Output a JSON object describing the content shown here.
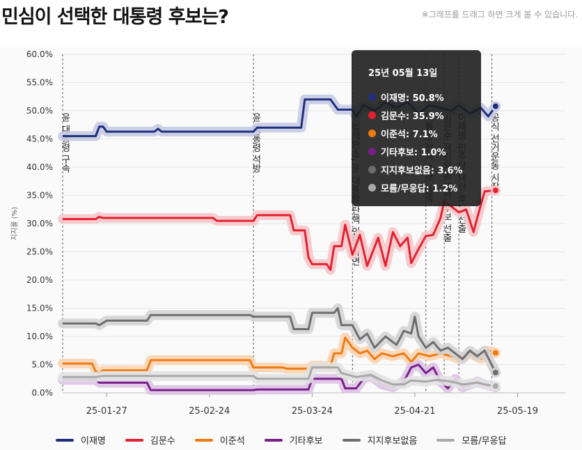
{
  "page": {
    "title": "민심이 선택한 대통령 후보는?",
    "hint": "※그래프를 드래그 하면 크게 볼 수 있습니다."
  },
  "chart_data": {
    "type": "line",
    "ylabel": "지지율 (%)",
    "ylim": [
      0,
      60
    ],
    "yticks": [
      "0.0%",
      "5.0%",
      "10.0%",
      "15.0%",
      "20.0%",
      "25.0%",
      "30.0%",
      "35.0%",
      "40.0%",
      "45.0%",
      "50.0%",
      "55.0%",
      "60.0%"
    ],
    "xlim": [
      "2025-01-15",
      "2025-06-01"
    ],
    "xticks": [
      {
        "date": "2025-01-27",
        "label": "25-01-27"
      },
      {
        "date": "2025-02-24",
        "label": "25-02-24"
      },
      {
        "date": "2025-03-24",
        "label": "25-03-24"
      },
      {
        "date": "2025-04-21",
        "label": "25-04-21"
      },
      {
        "date": "2025-05-19",
        "label": "25-05-19"
      }
    ],
    "grid": true,
    "legend_position": "bottom",
    "events": [
      {
        "date": "2025-01-15",
        "label": "윤 대통령 구속"
      },
      {
        "date": "2025-03-08",
        "label": "윤 대통령 석방"
      },
      {
        "date": "2025-04-04",
        "label": "헌법재판소, 윤 대통령 탄핵 인용·파면"
      },
      {
        "date": "2025-04-24",
        "label": "대통령 선거 후보 등록"
      },
      {
        "date": "2025-04-29",
        "label": "김문수 국민의힘 대선 후보 선출"
      },
      {
        "date": "2025-05-03",
        "label": "이재명 민주당 대선 후보 선출"
      },
      {
        "date": "2025-05-12",
        "label": "공식 선거운동 시작"
      }
    ],
    "series": [
      {
        "name": "이재명",
        "color": "#1f2f7a",
        "band": "#c7cbe4",
        "points": [
          [
            "2025-01-15",
            45.5
          ],
          [
            "2025-01-24",
            45.5
          ],
          [
            "2025-01-25",
            47.2
          ],
          [
            "2025-01-26",
            47.2
          ],
          [
            "2025-01-27",
            46.3
          ],
          [
            "2025-02-09",
            46.3
          ],
          [
            "2025-02-10",
            46.8
          ],
          [
            "2025-02-11",
            46.3
          ],
          [
            "2025-03-08",
            46.3
          ],
          [
            "2025-03-09",
            47.0
          ],
          [
            "2025-03-21",
            47.0
          ],
          [
            "2025-03-22",
            52.0
          ],
          [
            "2025-03-29",
            52.0
          ],
          [
            "2025-03-31",
            50.2
          ],
          [
            "2025-04-04",
            50.2
          ],
          [
            "2025-04-05",
            49.0
          ],
          [
            "2025-04-07",
            51.0
          ],
          [
            "2025-04-10",
            50.0
          ],
          [
            "2025-04-13",
            51.5
          ],
          [
            "2025-04-16",
            50.5
          ],
          [
            "2025-04-19",
            51.5
          ],
          [
            "2025-04-22",
            49.5
          ],
          [
            "2025-04-25",
            51.0
          ],
          [
            "2025-04-28",
            50.5
          ],
          [
            "2025-05-01",
            50.0
          ],
          [
            "2025-05-03",
            51.0
          ],
          [
            "2025-05-06",
            49.5
          ],
          [
            "2025-05-09",
            50.5
          ],
          [
            "2025-05-11",
            49.0
          ],
          [
            "2025-05-13",
            50.8
          ]
        ]
      },
      {
        "name": "김문수",
        "color": "#e3212f",
        "band": "#f6c6ca",
        "points": [
          [
            "2025-01-15",
            30.8
          ],
          [
            "2025-01-24",
            30.8
          ],
          [
            "2025-01-25",
            31.2
          ],
          [
            "2025-01-26",
            31.0
          ],
          [
            "2025-02-25",
            31.0
          ],
          [
            "2025-02-26",
            30.5
          ],
          [
            "2025-03-08",
            30.5
          ],
          [
            "2025-03-09",
            31.5
          ],
          [
            "2025-03-18",
            31.5
          ],
          [
            "2025-03-19",
            28.8
          ],
          [
            "2025-03-22",
            28.8
          ],
          [
            "2025-03-23",
            24.0
          ],
          [
            "2025-03-24",
            22.8
          ],
          [
            "2025-03-28",
            22.8
          ],
          [
            "2025-03-29",
            21.8
          ],
          [
            "2025-03-30",
            26.0
          ],
          [
            "2025-04-01",
            26.0
          ],
          [
            "2025-04-02",
            29.8
          ],
          [
            "2025-04-04",
            24.5
          ],
          [
            "2025-04-06",
            28.0
          ],
          [
            "2025-04-08",
            22.5
          ],
          [
            "2025-04-11",
            27.5
          ],
          [
            "2025-04-13",
            22.5
          ],
          [
            "2025-04-15",
            28.5
          ],
          [
            "2025-04-17",
            26.0
          ],
          [
            "2025-04-19",
            27.5
          ],
          [
            "2025-04-20",
            23.0
          ],
          [
            "2025-04-22",
            25.5
          ],
          [
            "2025-04-24",
            27.8
          ],
          [
            "2025-04-26",
            28.0
          ],
          [
            "2025-04-28",
            31.0
          ],
          [
            "2025-04-29",
            34.0
          ],
          [
            "2025-05-01",
            33.0
          ],
          [
            "2025-05-03",
            32.0
          ],
          [
            "2025-05-05",
            32.5
          ],
          [
            "2025-05-07",
            28.5
          ],
          [
            "2025-05-08",
            31.0
          ],
          [
            "2025-05-10",
            35.7
          ],
          [
            "2025-05-13",
            35.9
          ]
        ]
      },
      {
        "name": "이준석",
        "color": "#f07a12",
        "band": "#fbd4b3",
        "points": [
          [
            "2025-01-15",
            5.2
          ],
          [
            "2025-01-23",
            5.2
          ],
          [
            "2025-01-24",
            3.8
          ],
          [
            "2025-01-25",
            3.5
          ],
          [
            "2025-01-26",
            4.0
          ],
          [
            "2025-02-07",
            4.0
          ],
          [
            "2025-02-08",
            5.8
          ],
          [
            "2025-03-07",
            5.8
          ],
          [
            "2025-03-08",
            4.5
          ],
          [
            "2025-03-16",
            4.5
          ],
          [
            "2025-03-17",
            4.3
          ],
          [
            "2025-03-23",
            4.3
          ],
          [
            "2025-03-24",
            4.8
          ],
          [
            "2025-03-29",
            4.8
          ],
          [
            "2025-03-30",
            7.0
          ],
          [
            "2025-04-01",
            7.0
          ],
          [
            "2025-04-02",
            9.8
          ],
          [
            "2025-04-04",
            8.0
          ],
          [
            "2025-04-06",
            7.0
          ],
          [
            "2025-04-08",
            7.5
          ],
          [
            "2025-04-10",
            6.0
          ],
          [
            "2025-04-12",
            7.0
          ],
          [
            "2025-04-15",
            6.5
          ],
          [
            "2025-04-18",
            7.0
          ],
          [
            "2025-04-20",
            5.5
          ],
          [
            "2025-04-22",
            7.0
          ],
          [
            "2025-04-25",
            6.5
          ],
          [
            "2025-04-28",
            7.0
          ],
          [
            "2025-05-01",
            6.5
          ],
          [
            "2025-05-03",
            6.0
          ],
          [
            "2025-05-06",
            7.0
          ],
          [
            "2025-05-09",
            6.0
          ],
          [
            "2025-05-11",
            7.5
          ],
          [
            "2025-05-13",
            7.1
          ]
        ]
      },
      {
        "name": "기타후보",
        "color": "#7a1f8a",
        "band": "#dcc3e3",
        "points": [
          [
            "2025-01-15",
            2.3
          ],
          [
            "2025-01-24",
            2.3
          ],
          [
            "2025-01-25",
            1.8
          ],
          [
            "2025-02-07",
            1.8
          ],
          [
            "2025-02-08",
            0.5
          ],
          [
            "2025-03-08",
            0.5
          ],
          [
            "2025-03-09",
            0.6
          ],
          [
            "2025-03-23",
            0.6
          ],
          [
            "2025-03-24",
            2.5
          ],
          [
            "2025-04-01",
            2.5
          ],
          [
            "2025-04-02",
            0.8
          ],
          [
            "2025-04-05",
            0.8
          ],
          [
            "2025-04-07",
            2.5
          ],
          [
            "2025-04-09",
            3.0
          ],
          [
            "2025-04-12",
            1.5
          ],
          [
            "2025-04-15",
            1.0
          ],
          [
            "2025-04-18",
            2.0
          ],
          [
            "2025-04-20",
            4.5
          ],
          [
            "2025-04-22",
            5.0
          ],
          [
            "2025-04-24",
            3.5
          ],
          [
            "2025-04-26",
            4.5
          ],
          [
            "2025-04-28",
            2.0
          ],
          [
            "2025-04-30",
            0.8
          ],
          [
            "2025-05-02",
            2.5
          ],
          [
            "2025-05-04",
            1.0
          ],
          [
            "2025-05-06",
            1.5
          ],
          [
            "2025-05-08",
            2.0
          ],
          [
            "2025-05-10",
            1.5
          ],
          [
            "2025-05-13",
            1.0
          ]
        ]
      },
      {
        "name": "지지후보없음",
        "color": "#6e6e6e",
        "band": "#d4d4d4",
        "points": [
          [
            "2025-01-15",
            12.3
          ],
          [
            "2025-01-24",
            12.3
          ],
          [
            "2025-01-25",
            12.0
          ],
          [
            "2025-01-27",
            12.8
          ],
          [
            "2025-02-07",
            12.8
          ],
          [
            "2025-02-08",
            13.8
          ],
          [
            "2025-03-07",
            13.8
          ],
          [
            "2025-03-08",
            13.5
          ],
          [
            "2025-03-18",
            13.5
          ],
          [
            "2025-03-19",
            11.3
          ],
          [
            "2025-03-23",
            11.3
          ],
          [
            "2025-03-24",
            14.2
          ],
          [
            "2025-03-30",
            14.2
          ],
          [
            "2025-03-31",
            15.0
          ],
          [
            "2025-04-01",
            12.0
          ],
          [
            "2025-04-04",
            12.0
          ],
          [
            "2025-04-06",
            9.5
          ],
          [
            "2025-04-08",
            10.5
          ],
          [
            "2025-04-10",
            8.0
          ],
          [
            "2025-04-13",
            10.0
          ],
          [
            "2025-04-16",
            8.5
          ],
          [
            "2025-04-18",
            11.0
          ],
          [
            "2025-04-20",
            10.5
          ],
          [
            "2025-04-21",
            13.5
          ],
          [
            "2025-04-22",
            10.0
          ],
          [
            "2025-04-24",
            8.0
          ],
          [
            "2025-04-26",
            9.0
          ],
          [
            "2025-04-28",
            7.5
          ],
          [
            "2025-04-30",
            8.0
          ],
          [
            "2025-05-02",
            7.0
          ],
          [
            "2025-05-04",
            6.0
          ],
          [
            "2025-05-06",
            7.5
          ],
          [
            "2025-05-08",
            6.5
          ],
          [
            "2025-05-10",
            7.5
          ],
          [
            "2025-05-13",
            3.6
          ]
        ]
      },
      {
        "name": "모름/무응답",
        "color": "#a8a8a8",
        "band": "#e2e2e2",
        "points": [
          [
            "2025-01-15",
            2.8
          ],
          [
            "2025-01-24",
            2.8
          ],
          [
            "2025-01-26",
            3.0
          ],
          [
            "2025-03-08",
            3.0
          ],
          [
            "2025-03-09",
            2.5
          ],
          [
            "2025-03-23",
            2.5
          ],
          [
            "2025-03-24",
            4.5
          ],
          [
            "2025-03-31",
            4.5
          ],
          [
            "2025-04-01",
            3.5
          ],
          [
            "2025-04-05",
            2.8
          ],
          [
            "2025-04-09",
            3.2
          ],
          [
            "2025-04-12",
            2.2
          ],
          [
            "2025-04-15",
            1.5
          ],
          [
            "2025-04-18",
            1.5
          ],
          [
            "2025-04-20",
            2.2
          ],
          [
            "2025-04-24",
            2.0
          ],
          [
            "2025-04-27",
            2.3
          ],
          [
            "2025-05-01",
            2.0
          ],
          [
            "2025-05-04",
            1.5
          ],
          [
            "2025-05-08",
            1.8
          ],
          [
            "2025-05-10",
            1.5
          ],
          [
            "2025-05-13",
            1.2
          ]
        ]
      }
    ],
    "tooltip": {
      "date": "2025-05-13",
      "title": "25년 05월 13일",
      "rows": [
        {
          "label": "이재명: 50.8%",
          "color": "#1f2f7a"
        },
        {
          "label": "김문수: 35.9%",
          "color": "#e3212f"
        },
        {
          "label": "이준석: 7.1%",
          "color": "#f07a12"
        },
        {
          "label": "기타후보: 1.0%",
          "color": "#7a1f8a"
        },
        {
          "label": "지지후보없음: 3.6%",
          "color": "#6e6e6e"
        },
        {
          "label": "모름/무응답: 1.2%",
          "color": "#a8a8a8"
        }
      ]
    }
  }
}
